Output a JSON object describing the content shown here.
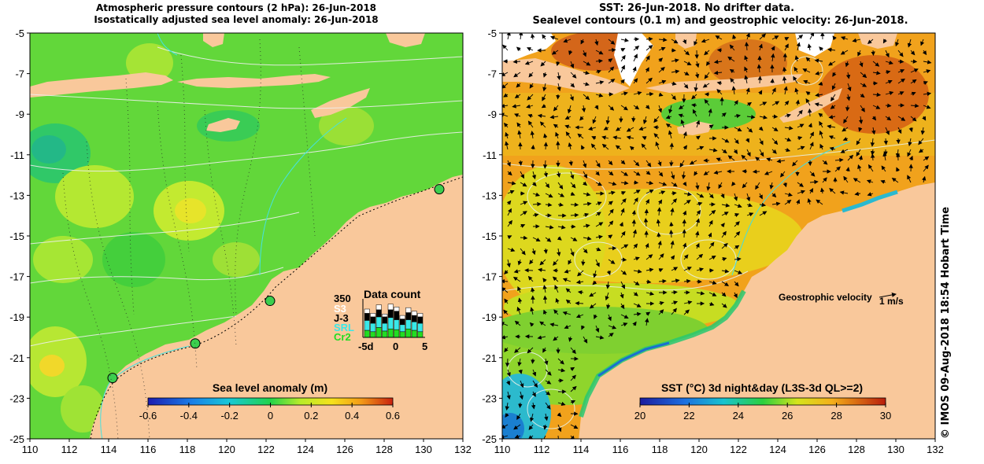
{
  "left_panel": {
    "title_line1": "Atmospheric pressure contours (2 hPa): 26-Jun-2018",
    "title_line2": "Isostatically adjusted sea level anomaly: 26-Jun-2018",
    "colorbar_label": "Sea level anomaly (m)",
    "colorbar_ticks": [
      "-0.6",
      "-0.4",
      "-0.2",
      "0",
      "0.2",
      "0.4",
      "0.6"
    ],
    "data_count": {
      "title": "Data count",
      "ymax": "350",
      "legend": [
        {
          "label": "S3",
          "color": "#ffffff"
        },
        {
          "label": "J-3",
          "color": "#000000"
        },
        {
          "label": "SRL",
          "color": "#38e8e8"
        },
        {
          "label": "Cr2",
          "color": "#22dd22"
        }
      ],
      "x_ticks": [
        "-5d",
        "0",
        "5"
      ]
    }
  },
  "right_panel": {
    "title_line1": "SST: 26-Jun-2018. No drifter data.",
    "title_line2": "Sealevel contours (0.1 m) and geostrophic velocity: 26-Jun-2018.",
    "velocity_label": "Geostrophic velocity",
    "velocity_scale": "1 m/s",
    "colorbar_label": "SST (°C) 3d night&day (L3S-3d QL>=2)",
    "colorbar_ticks": [
      "20",
      "22",
      "24",
      "26",
      "28",
      "30"
    ]
  },
  "axes": {
    "x_ticks": [
      "110",
      "112",
      "114",
      "116",
      "118",
      "120",
      "122",
      "124",
      "126",
      "128",
      "130",
      "132"
    ],
    "y_ticks": [
      "-5",
      "-7",
      "-9",
      "-11",
      "-13",
      "-15",
      "-17",
      "-19",
      "-21",
      "-23",
      "-25"
    ]
  },
  "credit": "© IMOS 09-Aug-2018 18:54 Hobart Time",
  "colors": {
    "land": "#f9c89b",
    "sla_green": "#5fd63a",
    "sst_orange": "#f0a21a",
    "sst_yellow": "#e9d61c"
  },
  "chart_data": [
    {
      "type": "heatmap",
      "title": "Atmospheric pressure contours (2 hPa): 26-Jun-2018 / Isostatically adjusted sea level anomaly: 26-Jun-2018",
      "xlabel": "",
      "ylabel": "",
      "xlim": [
        110,
        132
      ],
      "ylim": [
        -25,
        -5
      ],
      "colorbar": {
        "label": "Sea level anomaly (m)",
        "range": [
          -0.6,
          0.6
        ]
      },
      "stations": [
        [
          114.2,
          -22.0
        ],
        [
          118.4,
          -20.3
        ],
        [
          122.2,
          -18.2
        ],
        [
          130.8,
          -12.7
        ]
      ]
    },
    {
      "type": "bar",
      "title": "Data count",
      "x": [
        "-5d",
        "0",
        "5"
      ],
      "ylim": [
        0,
        350
      ],
      "series": [
        {
          "name": "S3"
        },
        {
          "name": "J-3"
        },
        {
          "name": "SRL"
        },
        {
          "name": "Cr2"
        }
      ]
    },
    {
      "type": "heatmap",
      "title": "SST: 26-Jun-2018. No drifter data. / Sealevel contours (0.1 m) and geostrophic velocity: 26-Jun-2018.",
      "xlabel": "",
      "ylabel": "",
      "xlim": [
        110,
        132
      ],
      "ylim": [
        -25,
        -5
      ],
      "colorbar": {
        "label": "SST (°C) 3d night&day (L3S-3d QL>=2)",
        "range": [
          20,
          30
        ]
      }
    }
  ]
}
